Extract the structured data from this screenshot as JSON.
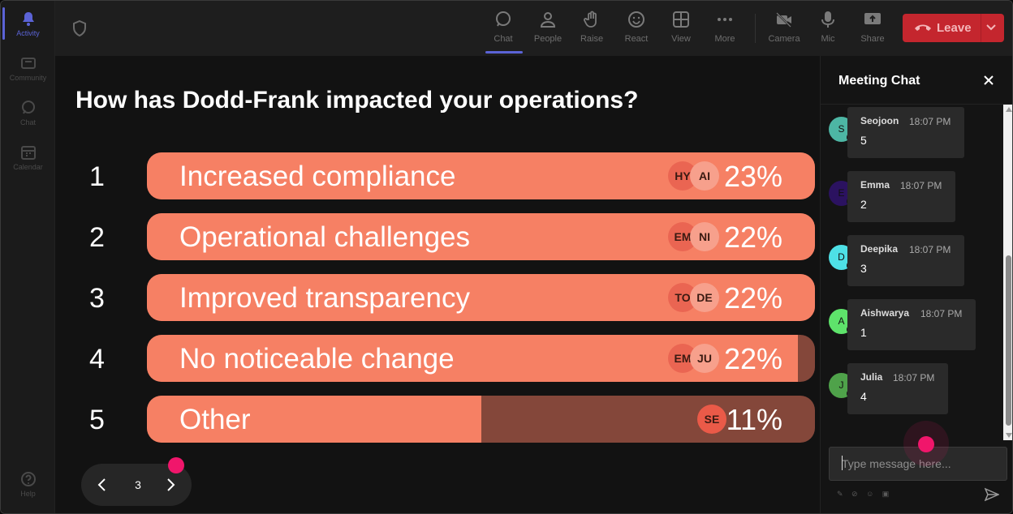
{
  "rail": {
    "items": [
      {
        "label": "Activity",
        "icon": "bell-icon"
      },
      {
        "label": "Community",
        "icon": "community-icon"
      },
      {
        "label": "Chat",
        "icon": "chat-icon"
      },
      {
        "label": "Calendar",
        "icon": "calendar-icon"
      },
      {
        "label": "Help",
        "icon": "help-icon"
      }
    ]
  },
  "toolbar": {
    "chat": "Chat",
    "people": "People",
    "raise": "Raise",
    "react": "React",
    "view": "View",
    "more": "More",
    "camera": "Camera",
    "mic": "Mic",
    "share": "Share",
    "leave": "Leave"
  },
  "poll": {
    "question": "How has Dodd-Frank impacted your operations?",
    "options": [
      {
        "num": "1",
        "label": "Increased compliance",
        "percent": "23%",
        "fill": 1.0,
        "avatars": [
          "HY",
          "AI"
        ]
      },
      {
        "num": "2",
        "label": "Operational challenges",
        "percent": "22%",
        "fill": 1.0,
        "avatars": [
          "EM",
          "NI"
        ]
      },
      {
        "num": "3",
        "label": "Improved transparency",
        "percent": "22%",
        "fill": 1.0,
        "avatars": [
          "TO",
          "DE"
        ]
      },
      {
        "num": "4",
        "label": "No noticeable change",
        "percent": "22%",
        "fill": 0.975,
        "avatars": [
          "EM",
          "JU"
        ]
      },
      {
        "num": "5",
        "label": "Other",
        "percent": "11%",
        "fill": 0.5,
        "avatars": [
          "SE"
        ]
      }
    ],
    "page": "3"
  },
  "chat": {
    "title": "Meeting Chat",
    "messages": [
      {
        "initial": "S",
        "name": "Seojoon",
        "time": "18:07 PM",
        "text": "5",
        "color": "#4db6a4"
      },
      {
        "initial": "E",
        "name": "Emma",
        "time": "18:07 PM",
        "text": "2",
        "color": "#2b1260"
      },
      {
        "initial": "D",
        "name": "Deepika",
        "time": "18:07 PM",
        "text": "3",
        "color": "#4ee0e6"
      },
      {
        "initial": "A",
        "name": "Aishwarya",
        "time": "18:07 PM",
        "text": "1",
        "color": "#5ee36b"
      },
      {
        "initial": "J",
        "name": "Julia",
        "time": "18:07 PM",
        "text": "4",
        "color": "#4fa24a"
      }
    ],
    "input_placeholder": "Type message here..."
  },
  "colors": {
    "bar_fill": "#f68064",
    "bar_track": "#84473a",
    "accent": "#5b63d6",
    "leave": "#c4262e",
    "marker": "#f0166b"
  }
}
